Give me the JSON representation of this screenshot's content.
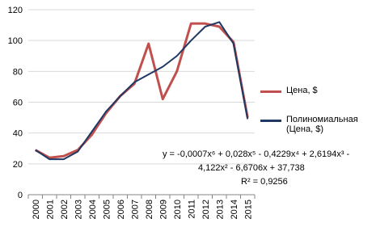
{
  "chart_data": {
    "type": "line",
    "categories": [
      "2000",
      "2001",
      "2002",
      "2003",
      "2004",
      "2005",
      "2006",
      "2007",
      "2008",
      "2009",
      "2010",
      "2011",
      "2012",
      "2013",
      "2014",
      "2015"
    ],
    "series": [
      {
        "name": "Цена, $",
        "color": "#c0504d",
        "width": 3,
        "values": [
          29,
          24,
          25,
          29,
          39,
          53,
          64,
          72,
          98,
          62,
          80,
          111,
          111,
          109,
          99,
          50
        ]
      },
      {
        "name": "Полиномиальная (Цена, $)",
        "color": "#1f3864",
        "width": 2,
        "values": [
          29,
          23,
          23,
          28,
          41,
          54,
          64,
          73,
          78,
          83,
          90,
          100,
          109,
          112,
          98,
          49
        ]
      }
    ],
    "ylim": [
      0,
      120
    ],
    "yticks": [
      0,
      20,
      40,
      60,
      80,
      100,
      120
    ],
    "grid": true,
    "annotations": [
      "y = -0,0007x⁶ + 0,028x⁵ - 0,4229x⁴ + 2,6194x³ -",
      "4,122x² - 6,6706x + 37,738",
      "R² = 0,9256"
    ]
  }
}
